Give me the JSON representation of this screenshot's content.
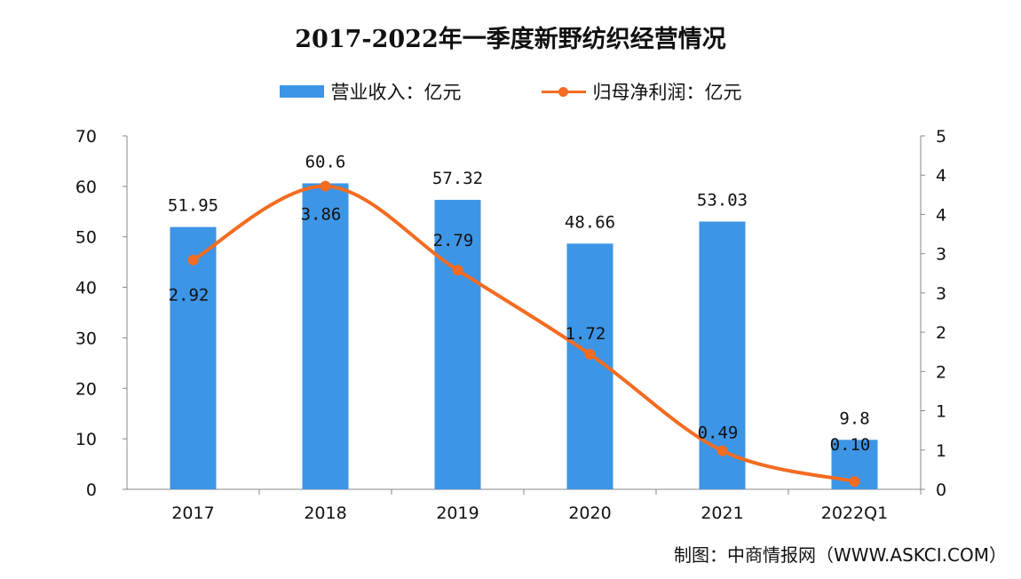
{
  "chart_data": {
    "type": "bar+line",
    "title": "2017-2022年一季度新野纺织经营情况",
    "categories": [
      "2017",
      "2018",
      "2019",
      "2020",
      "2021",
      "2022Q1"
    ],
    "series": [
      {
        "name": "营业收入：亿元",
        "type": "bar",
        "axis": "left",
        "color": "#3d95e6",
        "values": [
          51.95,
          60.6,
          57.32,
          48.66,
          53.03,
          9.8
        ],
        "labels": [
          "51.95",
          "60.6",
          "57.32",
          "48.66",
          "53.03",
          "9.8"
        ]
      },
      {
        "name": "归母净利润：亿元",
        "type": "line",
        "axis": "right",
        "color": "#f36c21",
        "values": [
          2.92,
          3.86,
          2.79,
          1.72,
          0.49,
          0.1
        ],
        "labels": [
          "2.92",
          "3.86",
          "2.79",
          "1.72",
          "0.49",
          "0.10"
        ]
      }
    ],
    "left_axis": {
      "ylim": [
        0,
        70
      ],
      "ticks": [
        "0",
        "10",
        "20",
        "30",
        "40",
        "50",
        "60",
        "70"
      ]
    },
    "right_axis": {
      "ylim": [
        0,
        4.5
      ],
      "ticks": [
        "0",
        "1",
        "1",
        "2",
        "2",
        "3",
        "3",
        "4",
        "4",
        "5"
      ]
    },
    "grid": false,
    "legend": "top"
  },
  "source": "制图：中商情报网（WWW.ASKCI.COM）"
}
